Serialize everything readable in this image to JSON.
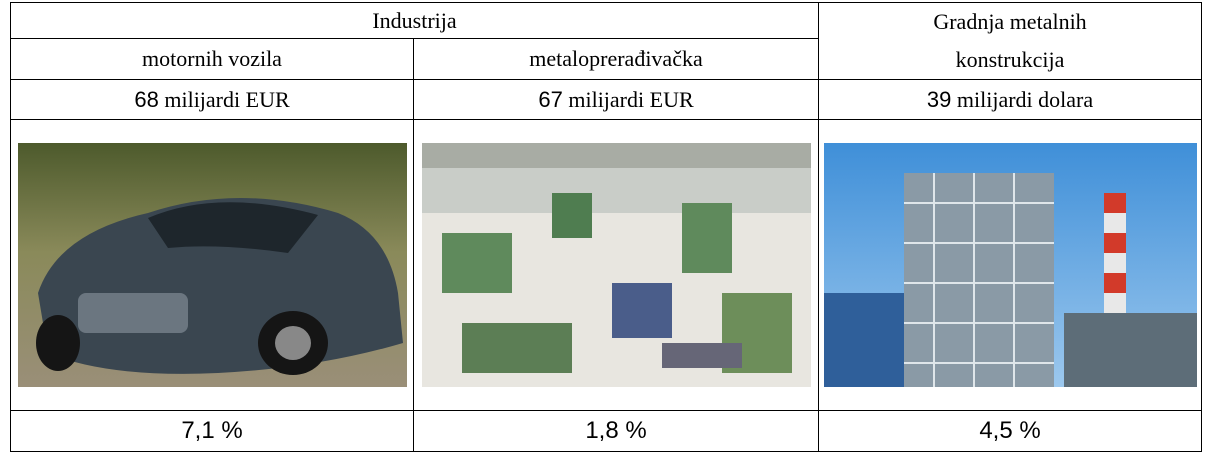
{
  "table": {
    "header": {
      "group": "Industrija",
      "last": "Gradnja metalnih konstrukcija",
      "columns": [
        "motornih vozila",
        "metaloprerađivačka"
      ]
    },
    "values": [
      {
        "number": "68",
        "unit": "milijardi EUR"
      },
      {
        "number": "67",
        "unit": "milijardi EUR"
      },
      {
        "number": "39",
        "unit": "milijardi dolara"
      }
    ],
    "shares": [
      "7,1 %",
      "1,8 %",
      "4,5 %"
    ]
  }
}
